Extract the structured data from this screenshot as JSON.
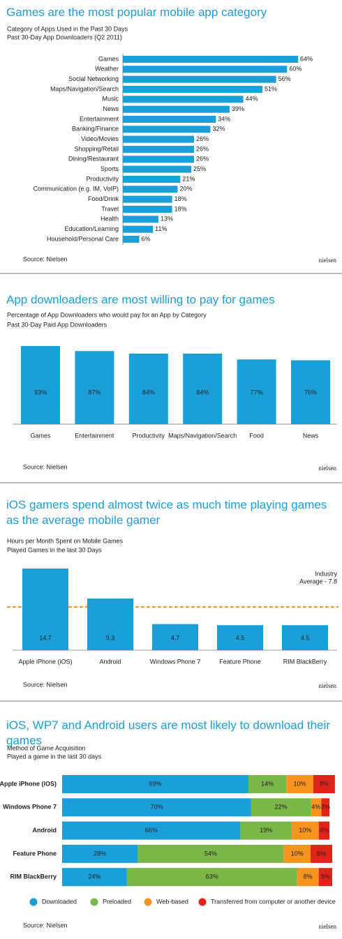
{
  "chart_data": [
    {
      "type": "bar",
      "orientation": "horizontal",
      "title": "Games are the most popular mobile app category",
      "subtitle": "Category of Apps Used in the Past 30 Days",
      "note": "Past 30-Day App Downloaders  (Q2 2011)",
      "categories": [
        "Games",
        "Weather",
        "Social Networking",
        "Maps/Navigation/Search",
        "Music",
        "News",
        "Entertainment",
        "Banking/Finance",
        "Video/Movies",
        "Shopping/Retail",
        "Dining/Restaurant",
        "Sports",
        "Productivity",
        "Communication (e.g. IM, VoIP)",
        "Food/Drink",
        "Travel",
        "Health",
        "Education/Learning",
        "Household/Personal Care"
      ],
      "values": [
        64,
        60,
        56,
        51,
        44,
        39,
        34,
        32,
        26,
        26,
        26,
        25,
        21,
        20,
        18,
        18,
        13,
        11,
        6
      ],
      "value_labels": [
        "64%",
        "60%",
        "56%",
        "51%",
        "44%",
        "39%",
        "34%",
        "32%",
        "26%",
        "26%",
        "26%",
        "25%",
        "21%",
        "20%",
        "18%",
        "18%",
        "13%",
        "11%",
        "6%"
      ],
      "color": "#1a9fd9",
      "source": "Source: Nielsen",
      "logo": "nielsen"
    },
    {
      "type": "bar",
      "orientation": "vertical",
      "title": "App downloaders are most willing to pay for games",
      "subtitle": "Percentage of App Downloaders who would pay for an App by Category",
      "note": "Past 30-Day Paid App Downloaders",
      "categories": [
        "Games",
        "Entertainment",
        "Productivity",
        "Maps/Navigation/Search",
        "Food",
        "News"
      ],
      "values": [
        93,
        87,
        84,
        84,
        77,
        76
      ],
      "value_labels": [
        "93%",
        "87%",
        "84%",
        "84%",
        "77%",
        "76%"
      ],
      "color": "#1a9fd9",
      "source": "Source: Nielsen",
      "logo": "nielsen"
    },
    {
      "type": "bar",
      "orientation": "vertical",
      "title": "iOS gamers spend almost twice as much time playing games as the average mobile gamer",
      "subtitle": "Hours per Month Spent on Mobile Games",
      "note": "Played Games in the last 30 Days",
      "categories": [
        "Apple iPhone (iOS)",
        "Android",
        "Windows Phone 7",
        "Feature Phone",
        "RIM BlackBerry"
      ],
      "values": [
        14.7,
        9.3,
        4.7,
        4.5,
        4.5
      ],
      "reference": {
        "value": 7.8,
        "label": [
          "Industry",
          "Average - 7.8"
        ],
        "color": "#f7941d"
      },
      "color": "#1a9fd9",
      "source": "Source: Nielsen",
      "logo": "nielsen"
    },
    {
      "type": "bar",
      "orientation": "horizontal",
      "stacked": true,
      "title": "iOS, WP7 and Android users are most likely to download their games",
      "subtitle": "Method of Game Acquisition",
      "note": "Played a game in the last 30 days",
      "categories": [
        "Apple iPhone (iOS)",
        "Windows Phone 7",
        "Android",
        "Feature Phone",
        "RIM BlackBerry"
      ],
      "series": [
        {
          "name": "Downloaded",
          "color": "#1a9fd9",
          "values": [
            69,
            70,
            66,
            28,
            24
          ],
          "value_labels": [
            "69%",
            "70%",
            "66%",
            "28%",
            "24%"
          ]
        },
        {
          "name": "Preloaded",
          "color": "#7ab648",
          "values": [
            14,
            22,
            19,
            54,
            63
          ],
          "value_labels": [
            "14%",
            "22%",
            "19%",
            "54%",
            "63%"
          ]
        },
        {
          "name": "Web-based",
          "color": "#f7941d",
          "values": [
            10,
            4,
            10,
            10,
            8
          ],
          "value_labels": [
            "10%",
            "4%",
            "10%",
            "10%",
            "8%"
          ]
        },
        {
          "name": "Transferred from computer or another device",
          "color": "#e2231a",
          "values": [
            8,
            3,
            4,
            8,
            5
          ],
          "value_labels": [
            "8%",
            "3%",
            "4%",
            "8%",
            "5%"
          ]
        }
      ],
      "source": "Source: Nielsen",
      "logo": "nielsen"
    }
  ]
}
